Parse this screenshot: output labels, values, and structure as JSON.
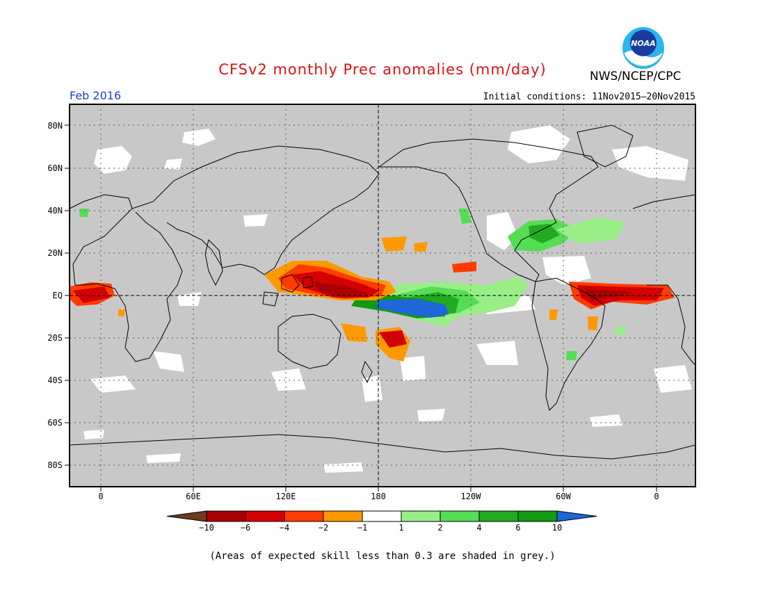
{
  "title": "CFSv2 monthly Prec anomalies (mm/day)",
  "agency": "NWS/NCEP/CPC",
  "logo_text": "NOAA",
  "month": "Feb 2016",
  "initial_conditions": "Initial conditions: 11Nov2015–20Nov2015",
  "lat_labels": [
    "80N",
    "60N",
    "40N",
    "20N",
    "EQ",
    "20S",
    "40S",
    "60S",
    "80S"
  ],
  "lon_labels": [
    "0",
    "60E",
    "120E",
    "180",
    "120W",
    "60W",
    "0"
  ],
  "legend": {
    "ticks": [
      "−10",
      "−6",
      "−4",
      "−2",
      "−1",
      "1",
      "2",
      "4",
      "6",
      "10"
    ],
    "colors": [
      "#6e3b1e",
      "#a80000",
      "#d40000",
      "#ff3c00",
      "#ff9900",
      "#ffffff",
      "#99ee88",
      "#55dd55",
      "#22aa22",
      "#119911",
      "#1f66d9"
    ]
  },
  "footnote": "(Areas of expected skill less than 0.3 are shaded in grey.)",
  "colors": {
    "grey_mask": "#c8c8c8",
    "title": "#e01010",
    "month": "#1a3fd6"
  }
}
